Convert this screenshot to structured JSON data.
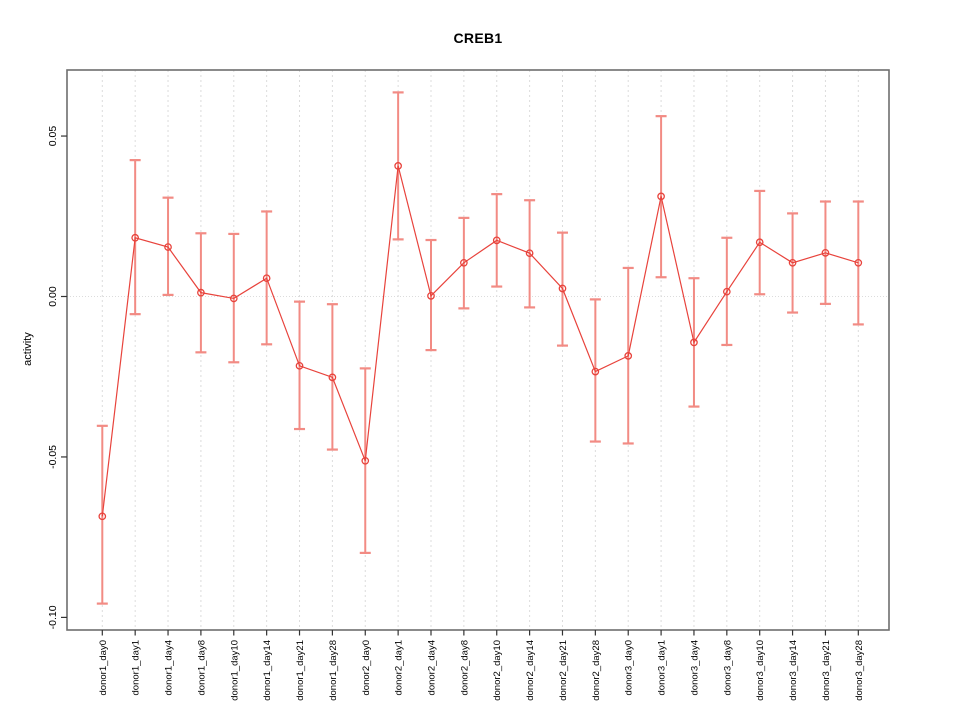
{
  "title": "CREB1",
  "chart_data": {
    "type": "line",
    "title": "CREB1",
    "xlabel": "",
    "ylabel": "activity",
    "legend": "none",
    "grid": "vertical dashed gridlines at each category; dotted horizontal line at y=0",
    "marker": "open-circle",
    "line_color": "#e8433c",
    "errorbar_color": "#f28b84",
    "gridline_color": "#dcdcdc",
    "frame_color": "#6e6e6e",
    "tick_color": "#333333",
    "text_color": "#000000",
    "ylim": [
      -0.104,
      0.0706
    ],
    "yticks": [
      0.05,
      0.0,
      -0.05,
      -0.1
    ],
    "ytick_labels": [
      "0.05",
      "0.00",
      "-0.05",
      "-0.10"
    ],
    "categories": [
      "donor1_day0",
      "donor1_day1",
      "donor1_day4",
      "donor1_day8",
      "donor1_day10",
      "donor1_day14",
      "donor1_day21",
      "donor1_day28",
      "donor2_day0",
      "donor2_day1",
      "donor2_day4",
      "donor2_day8",
      "donor2_day10",
      "donor2_day14",
      "donor2_day21",
      "donor2_day28",
      "donor3_day0",
      "donor3_day1",
      "donor3_day4",
      "donor3_day8",
      "donor3_day10",
      "donor3_day14",
      "donor3_day21",
      "donor3_day28"
    ],
    "series": [
      {
        "name": "activity",
        "values": [
          -0.0685,
          0.0183,
          0.0154,
          0.0012,
          -0.0006,
          0.0057,
          -0.0216,
          -0.0252,
          -0.0512,
          0.0407,
          0.0002,
          0.0105,
          0.0175,
          0.0135,
          0.0025,
          -0.0234,
          -0.0185,
          0.0312,
          -0.0143,
          0.0015,
          0.0169,
          0.0105,
          0.0136,
          0.0105
        ],
        "error_low": [
          -0.0957,
          -0.0055,
          0.0005,
          -0.0174,
          -0.0205,
          -0.0149,
          -0.0413,
          -0.0477,
          -0.0799,
          0.0178,
          -0.0167,
          -0.0037,
          0.0031,
          -0.0034,
          -0.0153,
          -0.0452,
          -0.0458,
          0.006,
          -0.0343,
          -0.0151,
          0.0007,
          -0.005,
          -0.0023,
          -0.0087
        ],
        "error_high": [
          -0.0403,
          0.0425,
          0.0308,
          0.0197,
          0.0195,
          0.0265,
          -0.0016,
          -0.0024,
          -0.0224,
          0.0636,
          0.0176,
          0.0245,
          0.0319,
          0.03,
          0.0199,
          -0.0009,
          0.0089,
          0.0562,
          0.0057,
          0.0183,
          0.0329,
          0.0259,
          0.0296,
          0.0296
        ]
      }
    ]
  }
}
